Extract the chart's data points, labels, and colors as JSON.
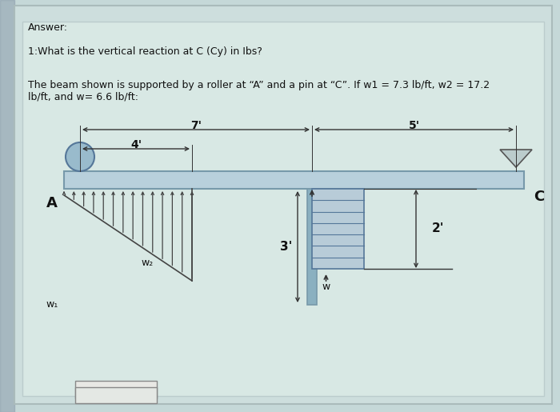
{
  "bg_outer": "#c5d8d8",
  "bg_panel": "#d4e4e0",
  "beam_color": "#b8d0dc",
  "beam_edge": "#7799aa",
  "text_color": "#111111",
  "dim_color": "#333333",
  "load_color": "#444444",
  "post_color": "#8ab0c0",
  "w_fill": "#b8ccd8",
  "roller_color": "#99bbcc",
  "pin_color": "#aaaaaa",
  "label_A": "A",
  "label_C": "C",
  "label_w1": "w₁",
  "label_w2": "w₂",
  "label_w": "w",
  "dim_4ft": "4'",
  "dim_7ft": "7'",
  "dim_5ft": "5'",
  "dim_3ft": "3'",
  "dim_2ft": "2'",
  "title_text": "The beam shown is supported by a roller at “A” and a pin at “C”. If w1 = 7.3 lb/ft, w2 = 17.2\nlb/ft, and w= 6.6 lb/ft:",
  "question_text": "1:What is the vertical reaction at C (Cy) in Ibs?",
  "answer_label": "Answer:"
}
